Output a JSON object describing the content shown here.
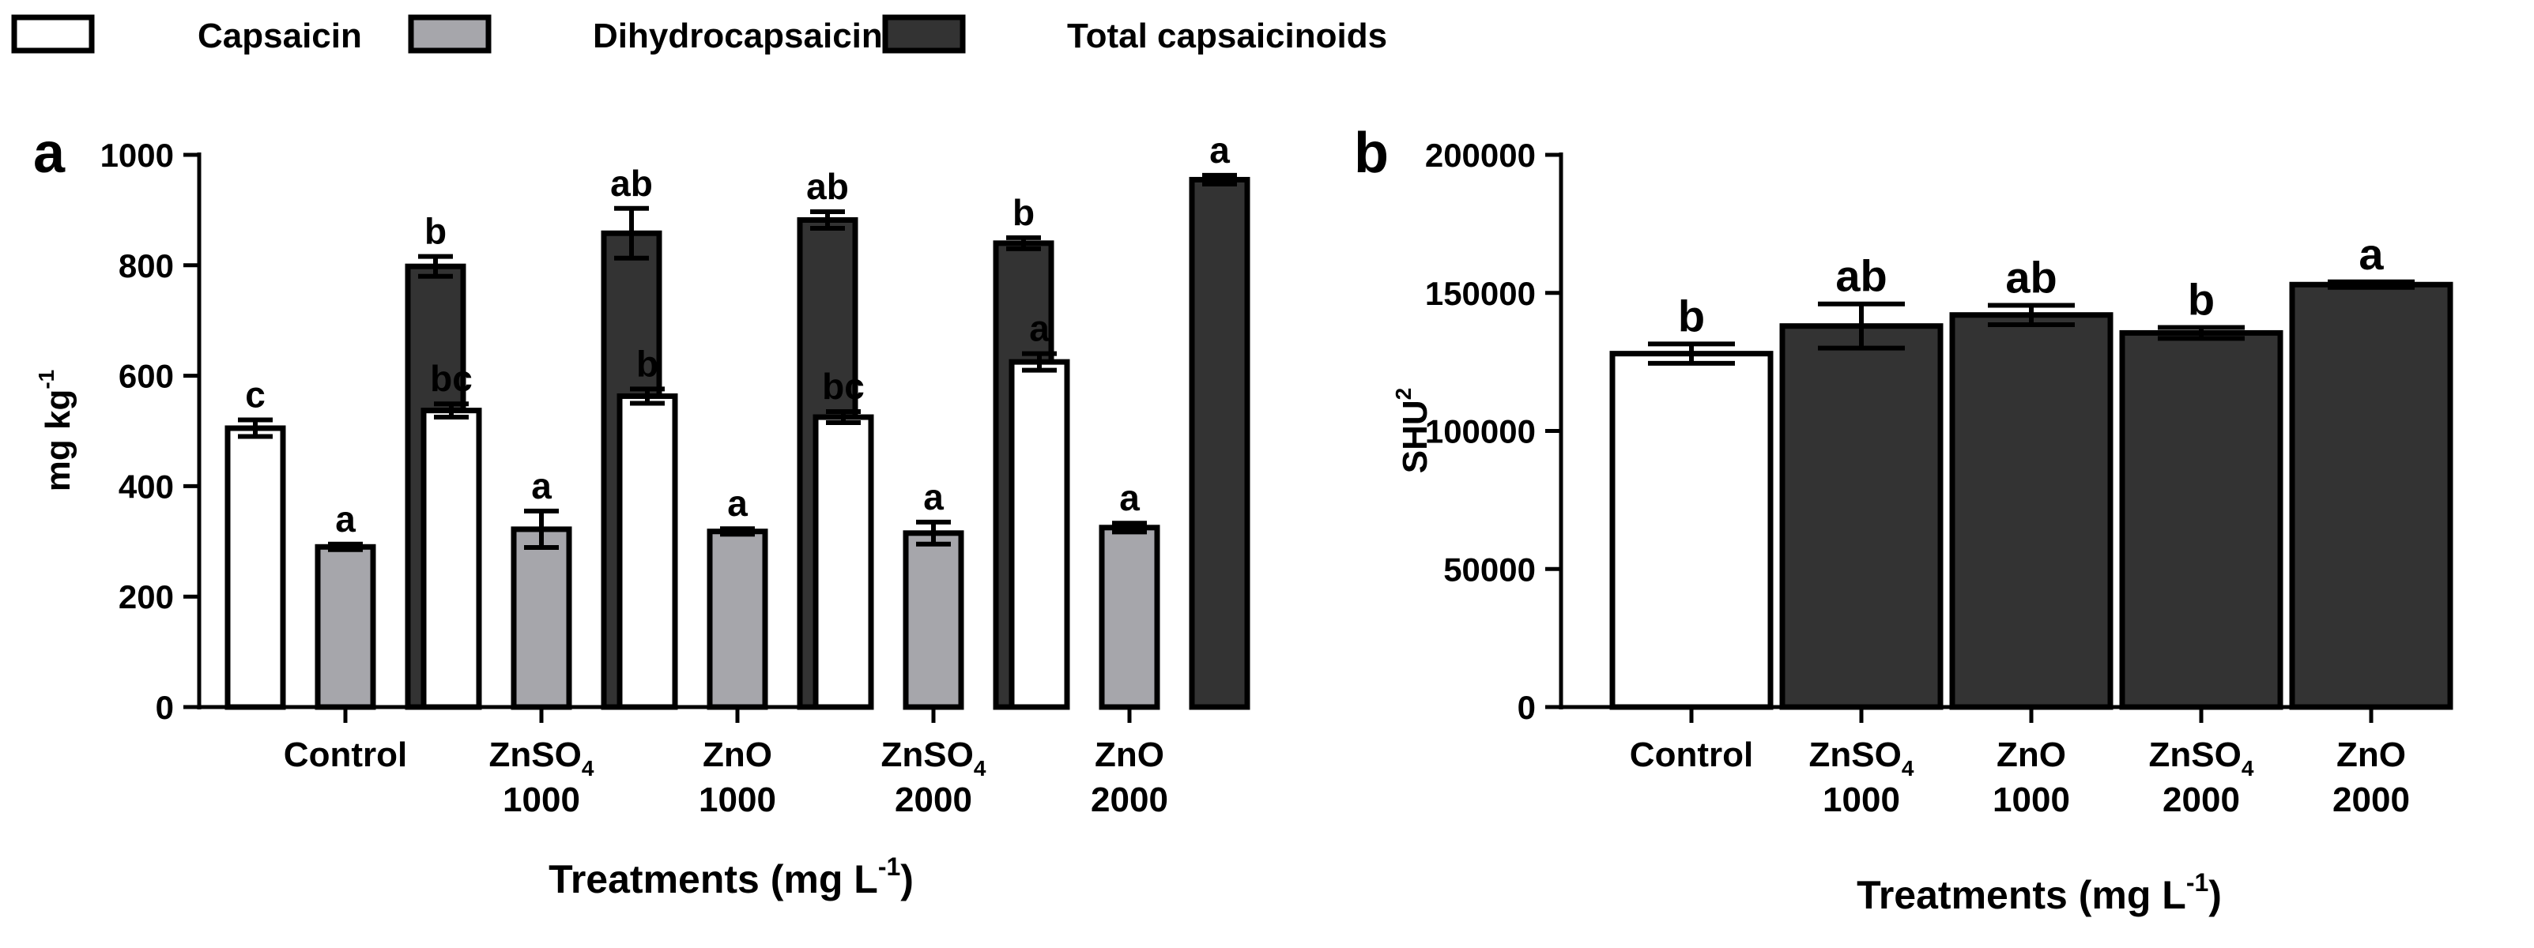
{
  "legend": {
    "items": [
      {
        "label": "Capsaicin",
        "color": "#ffffff"
      },
      {
        "label": "Dihydrocapsaicin",
        "color": "#a6a6ab"
      },
      {
        "label": "Total capsaicinoids",
        "color": "#333333"
      }
    ]
  },
  "colors": {
    "white": "#ffffff",
    "gray": "#a6a6ab",
    "dark": "#333333",
    "stroke": "#000000"
  },
  "chart_data": [
    {
      "panel": "a",
      "type": "bar",
      "ylabel": {
        "base": "mg kg",
        "sup": "-1"
      },
      "xlabel": {
        "base": "Treatments (mg L",
        "sup": "-1",
        "close": ")"
      },
      "ylim": [
        0,
        1000
      ],
      "yticks": [
        "0",
        "200",
        "400",
        "600",
        "800",
        "1000"
      ],
      "categories": [
        {
          "line1": "Control",
          "sub": "",
          "line2": ""
        },
        {
          "line1": "ZnSO",
          "sub": "4",
          "line2": "1000"
        },
        {
          "line1": "ZnO",
          "sub": "",
          "line2": "1000"
        },
        {
          "line1": "ZnSO",
          "sub": "4",
          "line2": "2000"
        },
        {
          "line1": "ZnO",
          "sub": "",
          "line2": "2000"
        }
      ],
      "series": [
        {
          "name": "Capsaicin",
          "color": "#ffffff",
          "values": [
            505,
            537,
            563,
            525,
            625
          ],
          "errors": [
            15,
            12,
            13,
            10,
            15
          ],
          "letters": [
            "c",
            "bc",
            "b",
            "bc",
            "a"
          ]
        },
        {
          "name": "Dihydrocapsaicin",
          "color": "#a6a6ab",
          "values": [
            290,
            322,
            318,
            315,
            325
          ],
          "errors": [
            5,
            33,
            5,
            20,
            8
          ],
          "letters": [
            "a",
            "a",
            "a",
            "a",
            "a"
          ]
        },
        {
          "name": "Total capsaicinoids",
          "color": "#333333",
          "values": [
            798,
            858,
            882,
            840,
            955
          ],
          "errors": [
            18,
            45,
            15,
            10,
            8
          ],
          "letters": [
            "b",
            "ab",
            "ab",
            "b",
            "a"
          ]
        }
      ]
    },
    {
      "panel": "b",
      "type": "bar",
      "ylabel": {
        "base": "SHU",
        "sup": "2"
      },
      "xlabel": {
        "base": "Treatments (mg L",
        "sup": "-1",
        "close": ")"
      },
      "ylim": [
        0,
        200000
      ],
      "yticks": [
        "0",
        "50000",
        "100000",
        "150000",
        "200000"
      ],
      "categories": [
        {
          "line1": "Control",
          "sub": "",
          "line2": ""
        },
        {
          "line1": "ZnSO",
          "sub": "4",
          "line2": "1000"
        },
        {
          "line1": "ZnO",
          "sub": "",
          "line2": "1000"
        },
        {
          "line1": "ZnSO",
          "sub": "4",
          "line2": "2000"
        },
        {
          "line1": "ZnO",
          "sub": "",
          "line2": "2000"
        }
      ],
      "series": [
        {
          "name": "SHU",
          "colors": [
            "#ffffff",
            "#333333",
            "#333333",
            "#333333",
            "#333333"
          ],
          "values": [
            128000,
            138000,
            142000,
            135500,
            153000
          ],
          "errors": [
            3500,
            8000,
            3500,
            2000,
            1000
          ],
          "letters": [
            "b",
            "ab",
            "ab",
            "b",
            "a"
          ]
        }
      ]
    }
  ]
}
